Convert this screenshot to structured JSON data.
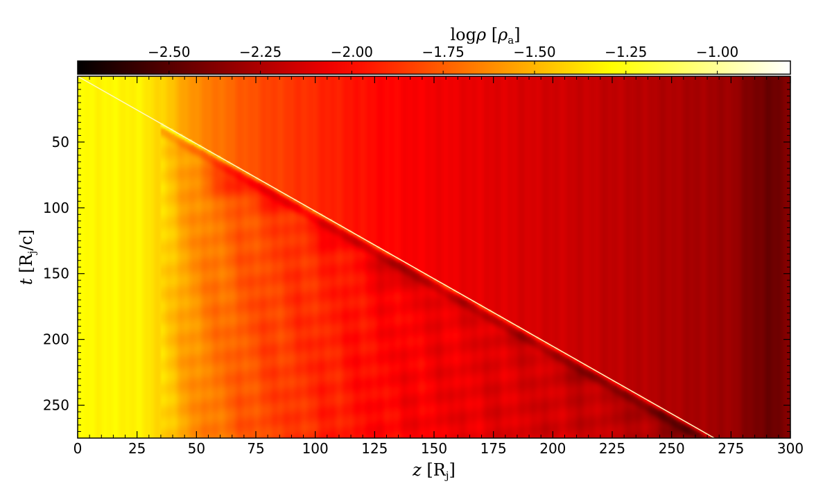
{
  "chart_data": {
    "type": "heatmap",
    "colorbar": {
      "label": "logρ [ρa]",
      "ticks": [
        "−2.50",
        "−2.25",
        "−2.00",
        "−1.75",
        "−1.50",
        "−1.25",
        "−1.00"
      ],
      "tick_values": [
        -2.5,
        -2.25,
        -2.0,
        -1.75,
        -1.5,
        -1.25,
        -1.0
      ],
      "range": [
        -2.75,
        -0.8
      ],
      "colormap": "hot",
      "placement": "top"
    },
    "xlabel": "z [Rj]",
    "ylabel": "t [Rj/c]",
    "xlim": [
      0,
      300
    ],
    "ylim": [
      275,
      0
    ],
    "x_ticks": [
      "0",
      "25",
      "50",
      "75",
      "100",
      "125",
      "150",
      "175",
      "200",
      "225",
      "250",
      "275",
      "300"
    ],
    "x_tick_values": [
      0,
      25,
      50,
      75,
      100,
      125,
      150,
      175,
      200,
      225,
      250,
      275,
      300
    ],
    "y_ticks": [
      "50",
      "100",
      "150",
      "200",
      "250"
    ],
    "y_tick_values": [
      50,
      100,
      150,
      200,
      250
    ],
    "field_description": {
      "background_profile_logrho": [
        {
          "z": 0,
          "v": -1.3
        },
        {
          "z": 25,
          "v": -1.32
        },
        {
          "z": 35,
          "v": -1.4
        },
        {
          "z": 50,
          "v": -1.62
        },
        {
          "z": 75,
          "v": -1.8
        },
        {
          "z": 100,
          "v": -1.9
        },
        {
          "z": 125,
          "v": -2.0
        },
        {
          "z": 150,
          "v": -2.05
        },
        {
          "z": 175,
          "v": -2.1
        },
        {
          "z": 200,
          "v": -2.15
        },
        {
          "z": 225,
          "v": -2.2
        },
        {
          "z": 250,
          "v": -2.25
        },
        {
          "z": 275,
          "v": -2.3
        },
        {
          "z": 290,
          "v": -2.45
        },
        {
          "z": 300,
          "v": -2.38
        }
      ],
      "front": [
        {
          "z": 0,
          "t": 0
        },
        {
          "z": 268,
          "t": 275
        }
      ],
      "perturbed_region": "left of front, z > 35",
      "perturbed_blobs": [
        {
          "z": 65,
          "t": 80,
          "v": -2.05
        },
        {
          "z": 85,
          "t": 92,
          "v": -2.1
        },
        {
          "z": 110,
          "t": 120,
          "v": -2.15
        },
        {
          "z": 135,
          "t": 145,
          "v": -2.3
        },
        {
          "z": 140,
          "t": 160,
          "v": -2.1
        },
        {
          "z": 160,
          "t": 175,
          "v": -2.15
        },
        {
          "z": 185,
          "t": 200,
          "v": -2.2
        },
        {
          "z": 215,
          "t": 225,
          "v": -2.35
        },
        {
          "z": 240,
          "t": 250,
          "v": -2.35
        },
        {
          "z": 255,
          "t": 265,
          "v": -2.5
        }
      ]
    }
  }
}
